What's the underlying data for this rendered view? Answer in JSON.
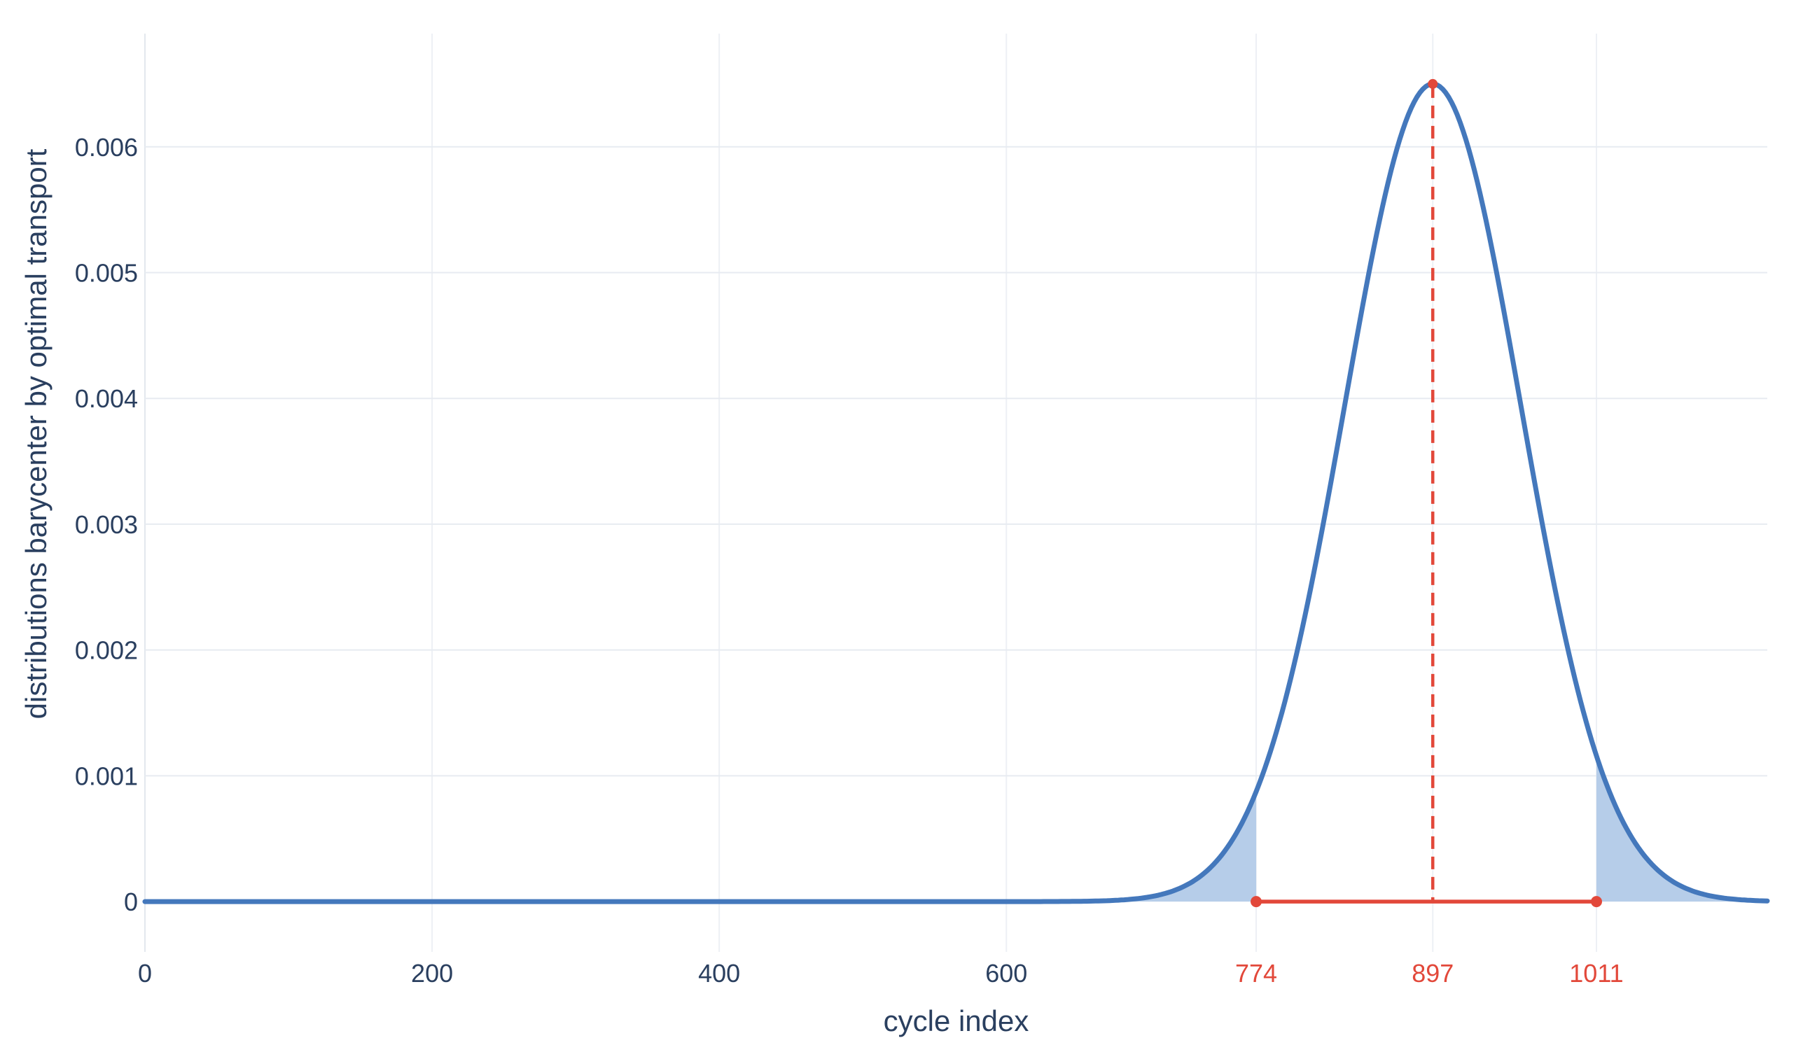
{
  "chart_data": {
    "type": "area",
    "title": "",
    "xlabel": "cycle index",
    "ylabel": "distributions barycenter by optimal transport",
    "xlim": [
      0,
      1130
    ],
    "ylim": [
      -0.0004,
      0.0069
    ],
    "grid": true,
    "legend": false,
    "x_ticks": [
      0,
      200,
      400,
      600
    ],
    "x_ticks_highlight": [
      774,
      897,
      1011
    ],
    "y_ticks": [
      0,
      0.001,
      0.002,
      0.003,
      0.004,
      0.005,
      0.006
    ],
    "curve": {
      "shape": "gaussian",
      "mean": 897,
      "sigma": 61.4,
      "peak_density": 0.0065,
      "x_start": 0,
      "x_end": 1130
    },
    "key_points": {
      "peak": {
        "x": 897,
        "y": 0.0065
      },
      "interval_lower": {
        "x": 774,
        "y": 0
      },
      "interval_upper": {
        "x": 1011,
        "y": 0
      },
      "density_at_774": 0.00088,
      "density_at_1011": 0.00116
    },
    "annotations": {
      "vertical_dashed_line_x": 897,
      "interval_line": {
        "from": 774,
        "to": 1011,
        "y": 0
      },
      "shaded_tail_regions": [
        {
          "from": 0,
          "to": 774
        },
        {
          "from": 1011,
          "to": 1130
        }
      ]
    },
    "colors": {
      "curve_blue": "#4478bc",
      "tail_fill": "#b6cde9",
      "marker_red": "#e2483a",
      "text_navy": "#2a3f5f",
      "grid_horizontal": "#e7ebf1",
      "grid_vertical": "#edf0f5",
      "axis_line": "#e3e8ee",
      "background": "#ffffff"
    }
  }
}
